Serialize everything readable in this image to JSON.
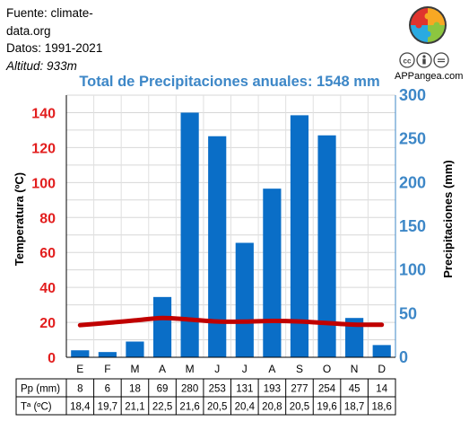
{
  "meta": {
    "source_label": "Fuente: climate-",
    "source_label_cont": "data.org",
    "data_period": "Datos: 1991-2021",
    "altitude_label": "Altitud:",
    "altitude_value": "933m"
  },
  "brand": {
    "name": "APPangea.com"
  },
  "colors": {
    "bars": "#0a6ec7",
    "temperature_line": "#c00000",
    "left_axis": "#e21e1e",
    "right_axis": "#3d87c7",
    "title": "#3d87c7"
  },
  "chart_data": {
    "type": "bar",
    "title": "Total de Precipitaciones anuales: 1548 mm",
    "categories": [
      "E",
      "F",
      "M",
      "A",
      "M",
      "J",
      "J",
      "A",
      "S",
      "O",
      "N",
      "D"
    ],
    "series": [
      {
        "name": "Pp (mm)",
        "type": "bar",
        "axis": "right",
        "values": [
          8,
          6,
          18,
          69,
          280,
          253,
          131,
          193,
          277,
          254,
          45,
          14
        ]
      },
      {
        "name": "Tª (ºC)",
        "type": "line",
        "axis": "left",
        "values": [
          18.4,
          19.7,
          21.1,
          22.5,
          21.6,
          20.5,
          20.4,
          20.8,
          20.5,
          19.6,
          18.7,
          18.6
        ]
      }
    ],
    "left_axis": {
      "label": "Temperatura (ºC)",
      "ylim": [
        0,
        150
      ],
      "ticks": [
        0,
        20,
        40,
        60,
        80,
        100,
        120,
        140
      ]
    },
    "right_axis": {
      "label": "Precipitaciones (mm)",
      "ylim": [
        0,
        300
      ],
      "ticks": [
        0,
        50,
        100,
        150,
        200,
        250,
        300
      ]
    },
    "grid": true,
    "table": {
      "rows": [
        {
          "label": "Pp (mm)",
          "values": [
            "8",
            "6",
            "18",
            "69",
            "280",
            "253",
            "131",
            "193",
            "277",
            "254",
            "45",
            "14"
          ]
        },
        {
          "label": "Tª (ºC)",
          "values": [
            "18,4",
            "19,7",
            "21,1",
            "22,5",
            "21,6",
            "20,5",
            "20,4",
            "20,8",
            "20,5",
            "19,6",
            "18,7",
            "18,6"
          ]
        }
      ]
    }
  }
}
